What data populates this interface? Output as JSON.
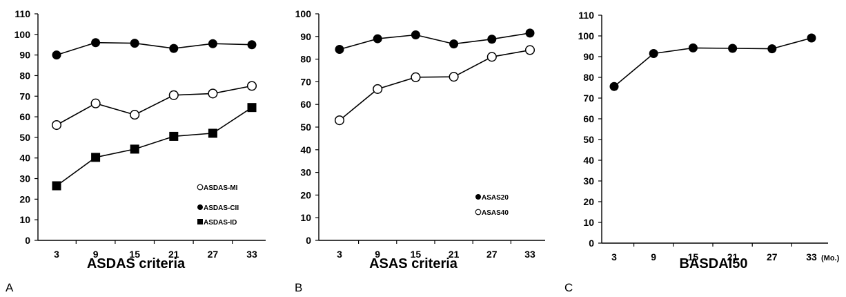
{
  "chart_data": [
    {
      "type": "line",
      "panel_label": "A",
      "title": "ASDAS criteria",
      "categories": [
        "3",
        "9",
        "15",
        "21",
        "27",
        "33"
      ],
      "ylim": [
        0,
        110
      ],
      "yticks": [
        0,
        10,
        20,
        30,
        40,
        50,
        60,
        70,
        80,
        90,
        100,
        110
      ],
      "grid": false,
      "legend_position": "bottom-right",
      "series": [
        {
          "name": "ASDAS-MI",
          "marker": "open-circle",
          "values": [
            56,
            66.5,
            61,
            70.5,
            71.3,
            75
          ]
        },
        {
          "name": "ASDAS-CII",
          "marker": "filled-circle",
          "values": [
            90,
            96,
            95.7,
            93.2,
            95.5,
            95
          ]
        },
        {
          "name": "ASDAS-ID",
          "marker": "filled-square",
          "values": [
            26.5,
            40.3,
            44.3,
            50.5,
            52,
            64.5
          ]
        }
      ]
    },
    {
      "type": "line",
      "panel_label": "B",
      "title": "ASAS criteria",
      "categories": [
        "3",
        "9",
        "15",
        "21",
        "27",
        "33"
      ],
      "ylim": [
        0,
        100
      ],
      "yticks": [
        0,
        10,
        20,
        30,
        40,
        50,
        60,
        70,
        80,
        90,
        100
      ],
      "grid": false,
      "legend_position": "bottom-right",
      "series": [
        {
          "name": "ASAS20",
          "marker": "filled-circle",
          "values": [
            84.3,
            89,
            90.7,
            86.7,
            88.8,
            91.5
          ]
        },
        {
          "name": "ASAS40",
          "marker": "open-circle",
          "values": [
            53,
            66.8,
            72,
            72.2,
            81,
            84
          ]
        }
      ]
    },
    {
      "type": "line",
      "panel_label": "C",
      "title": "BASDAI50",
      "categories": [
        "3",
        "9",
        "15",
        "21",
        "27",
        "33"
      ],
      "x_unit": "(Mo.)",
      "ylim": [
        0,
        110
      ],
      "yticks": [
        0,
        10,
        20,
        30,
        40,
        50,
        60,
        70,
        80,
        90,
        100,
        110
      ],
      "grid": false,
      "series": [
        {
          "marker": "filled-circle",
          "values": [
            75.6,
            91.5,
            94.2,
            94,
            93.8,
            99
          ]
        }
      ]
    }
  ]
}
